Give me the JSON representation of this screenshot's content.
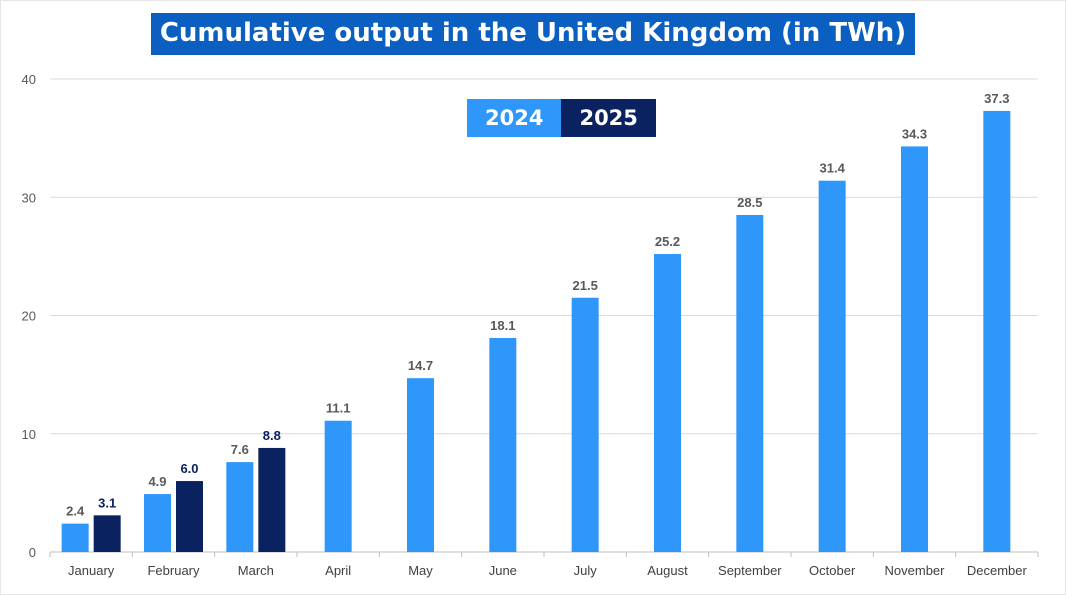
{
  "colors": {
    "series_2024": "#2f96fa",
    "series_2025": "#0a2260",
    "title_bg": "#0a5fc0",
    "grid": "#d9d9d9",
    "label_2024": "#595959",
    "label_2025": "#0a2260"
  },
  "chart_data": {
    "type": "bar",
    "title": "Cumulative output in the United Kingdom (in TWh)",
    "xlabel": "",
    "ylabel": "",
    "ylim": [
      0,
      40
    ],
    "yticks": [
      "0",
      "10",
      "20",
      "30",
      "40"
    ],
    "grid": true,
    "legend_position": "top-center",
    "categories": [
      "January",
      "February",
      "March",
      "April",
      "May",
      "June",
      "July",
      "August",
      "September",
      "October",
      "November",
      "December"
    ],
    "series": [
      {
        "name": "2024",
        "values": [
          2.4,
          4.9,
          7.6,
          11.1,
          14.7,
          18.1,
          21.5,
          25.2,
          28.5,
          31.4,
          34.3,
          37.3
        ],
        "labels": [
          "2.4",
          "4.9",
          "7.6",
          "11.1",
          "14.7",
          "18.1",
          "21.5",
          "25.2",
          "28.5",
          "31.4",
          "34.3",
          "37.3"
        ]
      },
      {
        "name": "2025",
        "values": [
          3.1,
          6.0,
          8.8,
          null,
          null,
          null,
          null,
          null,
          null,
          null,
          null,
          null
        ],
        "labels": [
          "3.1",
          "6.0",
          "8.8",
          null,
          null,
          null,
          null,
          null,
          null,
          null,
          null,
          null
        ]
      }
    ]
  }
}
